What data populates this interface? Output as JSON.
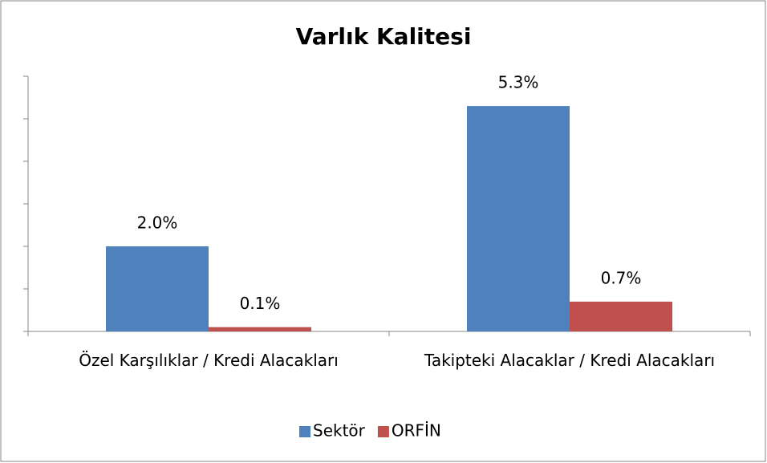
{
  "chart_data": {
    "type": "bar",
    "title": "Varlık Kalitesi",
    "categories": [
      "Özel Karşılıklar / Kredi Alacakları",
      "Takipteki Alacaklar / Kredi Alacakları"
    ],
    "series": [
      {
        "name": "Sektör",
        "color": "#4f81bd",
        "values": [
          2.0,
          5.3
        ],
        "value_labels": [
          "2.0%",
          "5.3%"
        ]
      },
      {
        "name": "ORFİN",
        "color": "#c0504d",
        "values": [
          0.1,
          0.7
        ],
        "value_labels": [
          "0.1%",
          "0.7%"
        ]
      }
    ],
    "ylim": [
      0,
      6
    ],
    "yticks": [
      0,
      1,
      2,
      3,
      4,
      5,
      6
    ],
    "legend": "bottom"
  }
}
